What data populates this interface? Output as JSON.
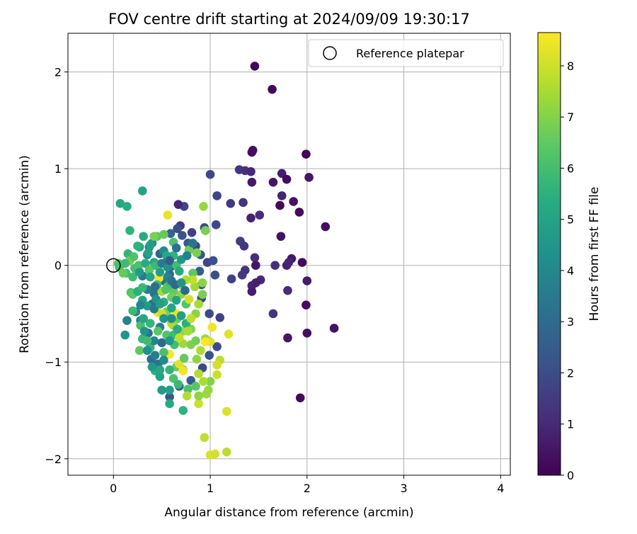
{
  "chart_data": {
    "type": "scatter",
    "title": "FOV centre drift starting at 2024/09/09 19:30:17",
    "xlabel": "Angular distance from reference (arcmin)",
    "ylabel": "Rotation from reference (arcmin)",
    "xlim": [
      -0.47,
      4.1
    ],
    "ylim": [
      -2.17,
      2.4
    ],
    "xticks": [
      0,
      1,
      2,
      3,
      4
    ],
    "xtick_labels": [
      "0",
      "1",
      "2",
      "3",
      "4"
    ],
    "yticks": [
      -2,
      -1,
      0,
      1,
      2
    ],
    "ytick_labels": [
      "−2",
      "−1",
      "0",
      "1",
      "2"
    ],
    "grid": true,
    "legend": {
      "position": "top-right",
      "entries": [
        "Reference platepar"
      ]
    },
    "reference_point": {
      "name": "Reference platepar",
      "x": 0,
      "y": 0
    },
    "colorbar": {
      "label": "Hours from first FF file",
      "range": [
        0,
        8.65
      ],
      "ticks": [
        0,
        1,
        2,
        3,
        4,
        5,
        6,
        7,
        8
      ],
      "tick_labels": [
        "0",
        "1",
        "2",
        "3",
        "4",
        "5",
        "6",
        "7",
        "8"
      ],
      "colormap": "viridis"
    },
    "points": [
      [
        1.46,
        2.06,
        0.1
      ],
      [
        1.64,
        1.82,
        0.2
      ],
      [
        1.99,
        1.15,
        0.1
      ],
      [
        1.44,
        1.19,
        0.4
      ],
      [
        1.43,
        1.17,
        0.3
      ],
      [
        1.74,
        0.95,
        0.7
      ],
      [
        2.02,
        0.91,
        0.5
      ],
      [
        1.3,
        0.99,
        1.4
      ],
      [
        1.36,
        0.98,
        1.2
      ],
      [
        1.42,
        0.97,
        1.0
      ],
      [
        1.0,
        0.94,
        1.9
      ],
      [
        1.79,
        0.89,
        0.3
      ],
      [
        1.43,
        0.86,
        0.6
      ],
      [
        1.65,
        0.86,
        0.5
      ],
      [
        1.74,
        0.72,
        0.9
      ],
      [
        1.07,
        0.72,
        1.8
      ],
      [
        1.86,
        0.66,
        0.4
      ],
      [
        1.72,
        0.62,
        0.2
      ],
      [
        1.21,
        0.64,
        1.5
      ],
      [
        1.34,
        0.65,
        1.3
      ],
      [
        1.92,
        0.55,
        0.2
      ],
      [
        1.51,
        0.52,
        1.1
      ],
      [
        1.42,
        0.49,
        0.8
      ],
      [
        2.19,
        0.4,
        0.3
      ],
      [
        1.06,
        0.42,
        1.9
      ],
      [
        1.73,
        0.3,
        0.4
      ],
      [
        1.31,
        0.25,
        1.6
      ],
      [
        1.35,
        0.2,
        1.4
      ],
      [
        1.84,
        0.07,
        0.6
      ],
      [
        1.46,
        0.08,
        1.1
      ],
      [
        1.67,
        0.0,
        1.2
      ],
      [
        1.79,
        0.0,
        0.8
      ],
      [
        1.95,
        0.03,
        0.2
      ],
      [
        1.81,
        0.03,
        0.9
      ],
      [
        1.47,
        0.0,
        0.5
      ],
      [
        1.36,
        -0.05,
        1.3
      ],
      [
        1.33,
        -0.1,
        1.5
      ],
      [
        1.22,
        -0.14,
        1.7
      ],
      [
        1.43,
        -0.21,
        0.9
      ],
      [
        1.52,
        -0.15,
        1.0
      ],
      [
        1.47,
        -0.18,
        0.8
      ],
      [
        1.43,
        -0.27,
        0.7
      ],
      [
        1.8,
        -0.26,
        1.1
      ],
      [
        2.0,
        -0.16,
        0.6
      ],
      [
        1.65,
        -0.5,
        1.3
      ],
      [
        1.99,
        -0.41,
        0.3
      ],
      [
        2.28,
        -0.65,
        0.4
      ],
      [
        2.0,
        -0.7,
        0.3
      ],
      [
        1.8,
        -0.75,
        0.5
      ],
      [
        1.93,
        -1.37,
        0.2
      ],
      [
        0.73,
        0.61,
        1.8
      ],
      [
        0.67,
        0.63,
        0.9
      ],
      [
        0.69,
        0.41,
        1.5
      ],
      [
        0.66,
        0.38,
        2.1
      ],
      [
        0.81,
        0.34,
        1.7
      ],
      [
        0.94,
        0.39,
        2.0
      ],
      [
        0.71,
        0.31,
        2.3
      ],
      [
        0.59,
        0.33,
        2.8
      ],
      [
        0.77,
        0.23,
        2.5
      ],
      [
        0.85,
        0.2,
        1.9
      ],
      [
        0.9,
        0.11,
        2.4
      ],
      [
        0.97,
        0.03,
        1.8
      ],
      [
        1.03,
        0.05,
        2.2
      ],
      [
        1.05,
        -0.1,
        2.1
      ],
      [
        0.89,
        -0.06,
        2.6
      ],
      [
        0.91,
        -0.2,
        2.3
      ],
      [
        0.91,
        -0.34,
        1.9
      ],
      [
        0.99,
        -0.5,
        2.0
      ],
      [
        1.1,
        -0.54,
        1.7
      ],
      [
        1.07,
        -0.84,
        2.0
      ],
      [
        0.99,
        -0.93,
        2.2
      ],
      [
        0.92,
        -1.06,
        1.9
      ],
      [
        0.8,
        -1.19,
        2.6
      ],
      [
        0.58,
        -1.36,
        2.4
      ],
      [
        0.68,
        -1.25,
        2.7
      ],
      [
        0.5,
        -0.8,
        3.0
      ],
      [
        0.46,
        -1.02,
        3.3
      ],
      [
        0.39,
        -0.97,
        3.1
      ],
      [
        0.36,
        -0.7,
        3.2
      ],
      [
        0.28,
        -0.57,
        3.6
      ],
      [
        0.23,
        -0.48,
        3.9
      ],
      [
        0.14,
        -0.57,
        3.8
      ],
      [
        0.12,
        -0.72,
        4.5
      ],
      [
        0.4,
        -0.4,
        3.0
      ],
      [
        0.42,
        -0.29,
        3.4
      ],
      [
        0.35,
        -0.25,
        3.7
      ],
      [
        0.3,
        -0.11,
        3.5
      ],
      [
        0.37,
        0.19,
        3.3
      ],
      [
        0.4,
        0.23,
        3.9
      ],
      [
        0.35,
        0.11,
        4.1
      ],
      [
        0.48,
        0.12,
        2.8
      ],
      [
        0.55,
        0.04,
        3.1
      ],
      [
        0.6,
        -0.01,
        2.7
      ],
      [
        0.52,
        -0.16,
        3.2
      ],
      [
        0.58,
        -0.09,
        2.9
      ],
      [
        0.3,
        0.77,
        5.0
      ],
      [
        0.07,
        0.64,
        5.2
      ],
      [
        0.14,
        0.61,
        5.4
      ],
      [
        0.17,
        0.36,
        5.6
      ],
      [
        0.31,
        0.3,
        5.3
      ],
      [
        0.38,
        0.21,
        4.8
      ],
      [
        0.27,
        0.19,
        5.1
      ],
      [
        0.15,
        0.12,
        5.7
      ],
      [
        0.05,
        0.02,
        6.3
      ],
      [
        0.06,
        -0.02,
        6.1
      ],
      [
        0.13,
        -0.08,
        6.0
      ],
      [
        0.18,
        -0.28,
        6.2
      ],
      [
        0.2,
        -0.3,
        6.4
      ],
      [
        0.2,
        -0.47,
        5.9
      ],
      [
        0.28,
        -0.62,
        6.1
      ],
      [
        0.3,
        -0.76,
        5.8
      ],
      [
        0.27,
        -0.88,
        6.5
      ],
      [
        0.38,
        -0.85,
        5.7
      ],
      [
        0.43,
        -1.09,
        5.5
      ],
      [
        0.48,
        -1.15,
        5.0
      ],
      [
        0.5,
        -1.29,
        4.7
      ],
      [
        0.58,
        -1.29,
        4.9
      ],
      [
        0.58,
        -1.43,
        5.3
      ],
      [
        0.72,
        -1.5,
        5.6
      ],
      [
        0.77,
        -1.28,
        6.2
      ],
      [
        0.72,
        -1.08,
        6.5
      ],
      [
        0.65,
        -1.05,
        6.7
      ],
      [
        0.45,
        0.3,
        6.4
      ],
      [
        0.52,
        0.32,
        6.6
      ],
      [
        0.62,
        0.24,
        6.2
      ],
      [
        0.65,
        0.0,
        6.0
      ],
      [
        0.78,
        0.16,
        6.7
      ],
      [
        0.86,
        0.13,
        6.9
      ],
      [
        0.82,
        -0.08,
        6.5
      ],
      [
        0.7,
        -0.2,
        6.8
      ],
      [
        0.75,
        -0.4,
        6.3
      ],
      [
        0.66,
        -0.55,
        6.6
      ],
      [
        0.55,
        -0.48,
        6.9
      ],
      [
        0.62,
        -0.62,
        7.1
      ],
      [
        0.72,
        -0.68,
        7.3
      ],
      [
        0.8,
        -0.66,
        7.0
      ],
      [
        0.85,
        -0.5,
        7.2
      ],
      [
        0.88,
        -0.4,
        7.5
      ],
      [
        0.84,
        -0.22,
        7.4
      ],
      [
        0.92,
        -0.18,
        7.1
      ],
      [
        0.92,
        -0.3,
        6.9
      ],
      [
        0.95,
        -0.76,
        7.3
      ],
      [
        0.9,
        -0.88,
        7.6
      ],
      [
        1.0,
        -1.2,
        7.0
      ],
      [
        0.96,
        -1.33,
        7.4
      ],
      [
        0.88,
        -1.43,
        8.0
      ],
      [
        0.88,
        -1.35,
        7.2
      ],
      [
        0.93,
        -1.2,
        7.6
      ],
      [
        1.1,
        -0.98,
        7.8
      ],
      [
        1.07,
        -1.03,
        8.1
      ],
      [
        1.07,
        -1.13,
        8.0
      ],
      [
        1.17,
        -1.51,
        8.2
      ],
      [
        0.94,
        -1.78,
        7.9
      ],
      [
        1.0,
        -1.96,
        8.2
      ],
      [
        1.05,
        -1.95,
        8.1
      ],
      [
        1.17,
        -1.93,
        7.8
      ],
      [
        1.19,
        -0.71,
        8.3
      ],
      [
        1.02,
        -0.64,
        8.5
      ],
      [
        1.0,
        -0.79,
        8.2
      ],
      [
        0.95,
        -0.79,
        8.6
      ],
      [
        0.58,
        -0.92,
        8.6
      ],
      [
        0.68,
        -1.02,
        8.3
      ],
      [
        0.72,
        -1.09,
        8.5
      ],
      [
        0.76,
        -1.35,
        7.7
      ],
      [
        0.56,
        0.52,
        8.4
      ],
      [
        0.93,
        0.61,
        7.3
      ],
      [
        0.95,
        0.36,
        6.9
      ],
      [
        0.82,
        -0.15,
        7.9
      ],
      [
        0.78,
        -0.35,
        8.1
      ],
      [
        0.65,
        -0.5,
        8.4
      ],
      [
        0.6,
        -0.6,
        7.6
      ],
      [
        0.72,
        -0.81,
        7.4
      ],
      [
        0.8,
        -0.82,
        7.0
      ],
      [
        0.86,
        -0.97,
        7.2
      ],
      [
        0.88,
        -1.12,
        7.7
      ],
      [
        0.46,
        -0.49,
        8.5
      ],
      [
        0.5,
        -0.5,
        8.0
      ],
      [
        0.47,
        -0.13,
        8.6
      ],
      [
        0.47,
        0.01,
        8.4
      ],
      [
        0.5,
        -0.27,
        7.5
      ],
      [
        0.56,
        -0.22,
        7.0
      ],
      [
        0.62,
        -0.27,
        6.6
      ],
      [
        0.55,
        -0.72,
        6.3
      ],
      [
        0.63,
        -0.82,
        6.0
      ],
      [
        0.58,
        -1.08,
        5.7
      ],
      [
        0.48,
        -1.08,
        5.2
      ],
      [
        0.4,
        -1.05,
        4.6
      ],
      [
        0.35,
        -0.88,
        4.3
      ],
      [
        0.42,
        -0.78,
        4.0
      ],
      [
        0.48,
        -0.64,
        3.6
      ],
      [
        0.44,
        -0.35,
        4.4
      ],
      [
        0.35,
        -0.42,
        4.7
      ],
      [
        0.3,
        -0.36,
        5.0
      ],
      [
        0.25,
        -0.27,
        5.5
      ],
      [
        0.3,
        -0.23,
        5.8
      ],
      [
        0.22,
        -0.03,
        6.0
      ],
      [
        0.1,
        -0.08,
        6.6
      ],
      [
        0.17,
        0.05,
        6.8
      ],
      [
        0.26,
        0.0,
        6.2
      ],
      [
        0.33,
        0.02,
        5.4
      ],
      [
        0.42,
        0.03,
        5.1
      ],
      [
        0.48,
        -0.07,
        4.8
      ],
      [
        0.43,
        0.0,
        5.8
      ],
      [
        0.37,
        -0.05,
        6.4
      ],
      [
        0.52,
        0.15,
        4.2
      ],
      [
        0.45,
        -0.2,
        6.0
      ],
      [
        0.38,
        -0.6,
        5.7
      ],
      [
        0.52,
        -0.38,
        5.4
      ],
      [
        0.6,
        -0.44,
        5.1
      ],
      [
        0.7,
        -0.52,
        4.9
      ],
      [
        0.75,
        -0.6,
        5.5
      ],
      [
        0.62,
        -0.72,
        5.9
      ],
      [
        0.52,
        -0.9,
        6.1
      ],
      [
        0.46,
        -0.68,
        6.4
      ],
      [
        0.58,
        -0.2,
        5.9
      ],
      [
        0.62,
        0.1,
        5.6
      ],
      [
        0.68,
        -0.06,
        5.3
      ],
      [
        0.54,
        -0.25,
        6.3
      ],
      [
        0.6,
        -0.33,
        6.8
      ],
      [
        0.7,
        -0.3,
        7.2
      ],
      [
        0.75,
        -0.15,
        7.6
      ],
      [
        0.8,
        -0.55,
        7.8
      ],
      [
        0.68,
        -0.75,
        7.9
      ],
      [
        0.77,
        -0.68,
        7.5
      ],
      [
        0.85,
        -0.78,
        6.8
      ],
      [
        0.73,
        -0.96,
        6.6
      ],
      [
        0.62,
        -1.17,
        6.2
      ],
      [
        0.67,
        -1.23,
        5.8
      ],
      [
        0.85,
        -1.25,
        6.4
      ],
      [
        0.98,
        -1.29,
        7.3
      ],
      [
        0.42,
        0.3,
        6.9
      ],
      [
        0.36,
        0.13,
        5.0
      ],
      [
        0.25,
        0.2,
        5.6
      ],
      [
        0.21,
        0.09,
        6.2
      ],
      [
        0.12,
        0.02,
        5.9
      ],
      [
        0.55,
        0.1,
        5.2
      ],
      [
        0.65,
        0.18,
        3.2
      ],
      [
        0.28,
        -0.41,
        4.0
      ],
      [
        0.42,
        -0.45,
        3.5
      ],
      [
        0.31,
        -0.55,
        5.2
      ],
      [
        0.52,
        -0.55,
        4.5
      ],
      [
        0.48,
        -0.4,
        4.9
      ],
      [
        0.56,
        -0.12,
        3.9
      ],
      [
        0.65,
        -0.36,
        5.0
      ],
      [
        0.6,
        -0.55,
        4.2
      ],
      [
        0.66,
        -0.66,
        5.4
      ],
      [
        0.58,
        -0.78,
        4.6
      ],
      [
        0.52,
        -0.98,
        4.1
      ],
      [
        0.43,
        -0.93,
        3.7
      ],
      [
        0.35,
        -0.78,
        5.9
      ],
      [
        0.32,
        -0.68,
        4.5
      ],
      [
        0.2,
        -0.12,
        5.9
      ],
      [
        0.27,
        -0.07,
        4.7
      ],
      [
        0.38,
        -0.12,
        5.2
      ],
      [
        0.43,
        -0.22,
        3.2
      ],
      [
        0.5,
        0.02,
        3.6
      ],
      [
        0.56,
        -0.02,
        4.3
      ],
      [
        0.58,
        0.05,
        2.6
      ],
      [
        0.6,
        -0.16,
        3.3
      ],
      [
        0.64,
        -0.2,
        2.9
      ],
      [
        0.7,
        -0.18,
        4.5
      ],
      [
        0.74,
        -0.26,
        3.0
      ],
      [
        0.7,
        0.06,
        4.6
      ],
      [
        0.76,
        0.1,
        3.8
      ],
      [
        0.82,
        0.23,
        3.4
      ]
    ]
  }
}
